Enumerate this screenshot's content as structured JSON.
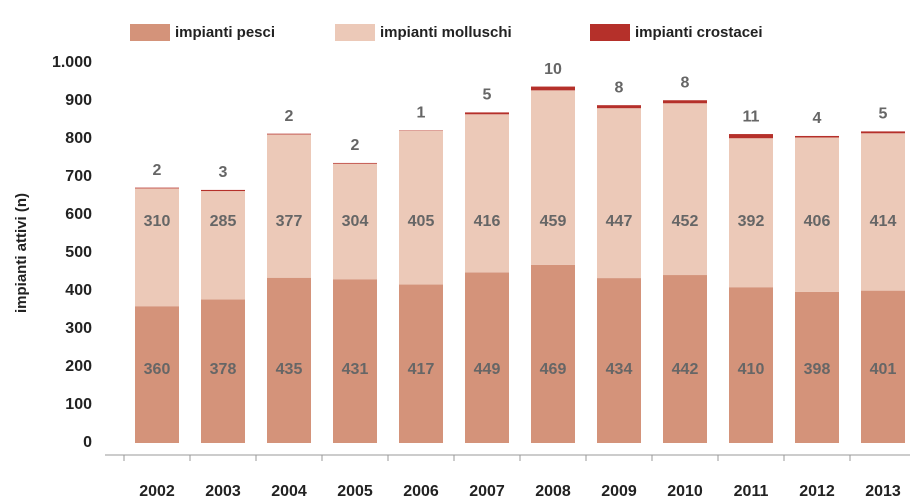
{
  "chart_data": {
    "type": "stacked_bar",
    "y_label": "impianti attivi (n)",
    "categories": [
      "2002",
      "2003",
      "2004",
      "2005",
      "2006",
      "2007",
      "2008",
      "2009",
      "2010",
      "2011",
      "2012",
      "2013"
    ],
    "series": [
      {
        "name": "impianti pesci",
        "color": "#d4937a",
        "values": [
          360,
          378,
          435,
          431,
          417,
          449,
          469,
          434,
          442,
          410,
          398,
          401
        ]
      },
      {
        "name": "impianti molluschi",
        "color": "#ecc9b8",
        "values": [
          310,
          285,
          377,
          304,
          405,
          416,
          459,
          447,
          452,
          392,
          406,
          414
        ]
      },
      {
        "name": "impianti crostacei",
        "color": "#b5302a",
        "values": [
          2,
          3,
          2,
          2,
          1,
          5,
          10,
          8,
          8,
          11,
          4,
          5
        ]
      }
    ],
    "ylim": [
      0,
      1000
    ],
    "yticks": [
      0,
      100,
      200,
      300,
      400,
      500,
      600,
      700,
      800,
      900,
      {
        "value": 1000,
        "label": "1.000"
      }
    ],
    "legend": "top",
    "grid": false
  }
}
